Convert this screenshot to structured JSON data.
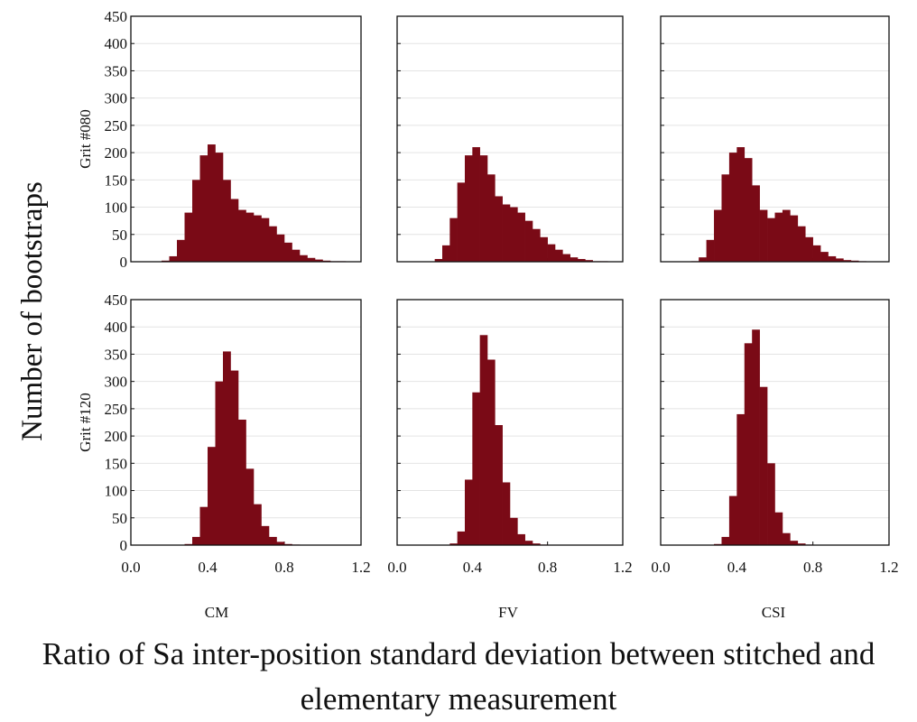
{
  "figure": {
    "ylabel": "Number of bootstraps",
    "xlabel": "Ratio of Sa inter-position standard deviation between stitched and elementary measurement",
    "row_labels": [
      "Grit #080",
      "Grit #120"
    ],
    "col_labels": [
      "CM",
      "FV",
      "CSI"
    ]
  },
  "chart_data": [
    {
      "type": "histogram",
      "color": "#7a0a16",
      "grid": true,
      "xtick_labels": false,
      "ytick_labels": true,
      "bins": [
        0,
        0.04,
        0.08,
        0.12,
        0.16,
        0.2,
        0.24,
        0.28,
        0.32,
        0.36,
        0.4,
        0.44,
        0.48,
        0.52,
        0.56,
        0.6,
        0.64,
        0.68,
        0.72,
        0.76,
        0.8,
        0.84,
        0.88,
        0.92,
        0.96,
        1,
        1.04,
        1.08,
        1.12,
        1.16,
        1.2
      ],
      "values": [
        0,
        0,
        0,
        0,
        2,
        10,
        40,
        90,
        150,
        195,
        215,
        200,
        150,
        115,
        95,
        90,
        85,
        80,
        65,
        50,
        35,
        22,
        12,
        7,
        4,
        2,
        1,
        1,
        0,
        0
      ],
      "xlim": [
        0,
        1.2
      ],
      "ylim": [
        0,
        450
      ],
      "xticks": [
        {
          "value": 0,
          "label": "0.0"
        },
        0.4,
        0.8,
        1.2
      ],
      "yticks": [
        0,
        50,
        100,
        150,
        200,
        250,
        300,
        350,
        400,
        450
      ]
    },
    {
      "type": "histogram",
      "color": "#7a0a16",
      "grid": true,
      "xtick_labels": false,
      "ytick_labels": false,
      "bins": [
        0,
        0.04,
        0.08,
        0.12,
        0.16,
        0.2,
        0.24,
        0.28,
        0.32,
        0.36,
        0.4,
        0.44,
        0.48,
        0.52,
        0.56,
        0.6,
        0.64,
        0.68,
        0.72,
        0.76,
        0.8,
        0.84,
        0.88,
        0.92,
        0.96,
        1,
        1.04,
        1.08,
        1.12,
        1.16,
        1.2
      ],
      "values": [
        0,
        0,
        0,
        0,
        0,
        5,
        30,
        80,
        145,
        195,
        210,
        195,
        160,
        120,
        105,
        100,
        90,
        75,
        60,
        45,
        32,
        22,
        14,
        8,
        5,
        3,
        1,
        1,
        0,
        0
      ],
      "xlim": [
        0,
        1.2
      ],
      "ylim": [
        0,
        450
      ],
      "xticks": [
        {
          "value": 0,
          "label": "0.0"
        },
        0.4,
        0.8,
        1.2
      ],
      "yticks": [
        0,
        50,
        100,
        150,
        200,
        250,
        300,
        350,
        400,
        450
      ]
    },
    {
      "type": "histogram",
      "color": "#7a0a16",
      "grid": true,
      "xtick_labels": false,
      "ytick_labels": false,
      "bins": [
        0,
        0.04,
        0.08,
        0.12,
        0.16,
        0.2,
        0.24,
        0.28,
        0.32,
        0.36,
        0.4,
        0.44,
        0.48,
        0.52,
        0.56,
        0.6,
        0.64,
        0.68,
        0.72,
        0.76,
        0.8,
        0.84,
        0.88,
        0.92,
        0.96,
        1,
        1.04,
        1.08,
        1.12,
        1.16,
        1.2
      ],
      "values": [
        0,
        0,
        0,
        0,
        1,
        8,
        40,
        95,
        160,
        200,
        210,
        190,
        140,
        95,
        80,
        90,
        95,
        85,
        65,
        45,
        30,
        18,
        10,
        6,
        3,
        2,
        1,
        0,
        0,
        0
      ],
      "xlim": [
        0,
        1.2
      ],
      "ylim": [
        0,
        450
      ],
      "xticks": [
        {
          "value": 0,
          "label": "0.0"
        },
        0.4,
        0.8,
        1.2
      ],
      "yticks": [
        0,
        50,
        100,
        150,
        200,
        250,
        300,
        350,
        400,
        450
      ]
    },
    {
      "type": "histogram",
      "color": "#7a0a16",
      "grid": true,
      "xtick_labels": true,
      "ytick_labels": true,
      "bins": [
        0,
        0.04,
        0.08,
        0.12,
        0.16,
        0.2,
        0.24,
        0.28,
        0.32,
        0.36,
        0.4,
        0.44,
        0.48,
        0.52,
        0.56,
        0.6,
        0.64,
        0.68,
        0.72,
        0.76,
        0.8,
        0.84,
        0.88,
        0.92,
        0.96,
        1,
        1.04,
        1.08,
        1.12,
        1.16,
        1.2
      ],
      "values": [
        0,
        0,
        0,
        0,
        0,
        0,
        0,
        2,
        15,
        70,
        180,
        300,
        355,
        320,
        230,
        140,
        75,
        35,
        15,
        6,
        2,
        1,
        0,
        0,
        0,
        0,
        0,
        0,
        0,
        0
      ],
      "xlim": [
        0,
        1.2
      ],
      "ylim": [
        0,
        450
      ],
      "xticks": [
        {
          "value": 0,
          "label": "0.0"
        },
        0.4,
        0.8,
        1.2
      ],
      "yticks": [
        0,
        50,
        100,
        150,
        200,
        250,
        300,
        350,
        400,
        450
      ]
    },
    {
      "type": "histogram",
      "color": "#7a0a16",
      "grid": true,
      "xtick_labels": true,
      "ytick_labels": false,
      "bins": [
        0,
        0.04,
        0.08,
        0.12,
        0.16,
        0.2,
        0.24,
        0.28,
        0.32,
        0.36,
        0.4,
        0.44,
        0.48,
        0.52,
        0.56,
        0.6,
        0.64,
        0.68,
        0.72,
        0.76,
        0.8,
        0.84,
        0.88,
        0.92,
        0.96,
        1,
        1.04,
        1.08,
        1.12,
        1.16,
        1.2
      ],
      "values": [
        0,
        0,
        0,
        0,
        0,
        0,
        0,
        3,
        25,
        120,
        280,
        385,
        340,
        220,
        115,
        50,
        20,
        8,
        3,
        1,
        0,
        0,
        0,
        0,
        0,
        0,
        0,
        0,
        0,
        0
      ],
      "xlim": [
        0,
        1.2
      ],
      "ylim": [
        0,
        450
      ],
      "xticks": [
        {
          "value": 0,
          "label": "0.0"
        },
        0.4,
        0.8,
        1.2
      ],
      "yticks": [
        0,
        50,
        100,
        150,
        200,
        250,
        300,
        350,
        400,
        450
      ]
    },
    {
      "type": "histogram",
      "color": "#7a0a16",
      "grid": true,
      "xtick_labels": true,
      "ytick_labels": false,
      "bins": [
        0,
        0.04,
        0.08,
        0.12,
        0.16,
        0.2,
        0.24,
        0.28,
        0.32,
        0.36,
        0.4,
        0.44,
        0.48,
        0.52,
        0.56,
        0.6,
        0.64,
        0.68,
        0.72,
        0.76,
        0.8,
        0.84,
        0.88,
        0.92,
        0.96,
        1,
        1.04,
        1.08,
        1.12,
        1.16,
        1.2
      ],
      "values": [
        0,
        0,
        0,
        0,
        0,
        0,
        0,
        2,
        15,
        90,
        240,
        370,
        395,
        290,
        150,
        60,
        22,
        8,
        3,
        1,
        0,
        0,
        0,
        0,
        0,
        0,
        0,
        0,
        0,
        0
      ],
      "xlim": [
        0,
        1.2
      ],
      "ylim": [
        0,
        450
      ],
      "xticks": [
        {
          "value": 0,
          "label": "0.0"
        },
        0.4,
        0.8,
        1.2
      ],
      "yticks": [
        0,
        50,
        100,
        150,
        200,
        250,
        300,
        350,
        400,
        450
      ]
    }
  ]
}
